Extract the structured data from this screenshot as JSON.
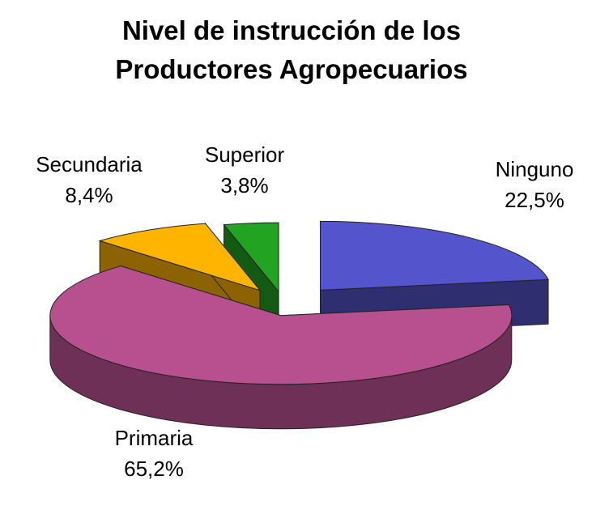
{
  "chart_data": {
    "type": "pie",
    "title": "Nivel de instrucción de los Productores Agropecuarios",
    "categories": [
      "Ninguno",
      "Primaria",
      "Secundaria",
      "Superior"
    ],
    "values": [
      22.5,
      65.2,
      8.4,
      3.8
    ],
    "value_labels": [
      "22,5%",
      "65,2%",
      "8,4%",
      "3,8%"
    ],
    "colors": [
      "#5454cc",
      "#b85090",
      "#ffb400",
      "#22a422"
    ]
  }
}
